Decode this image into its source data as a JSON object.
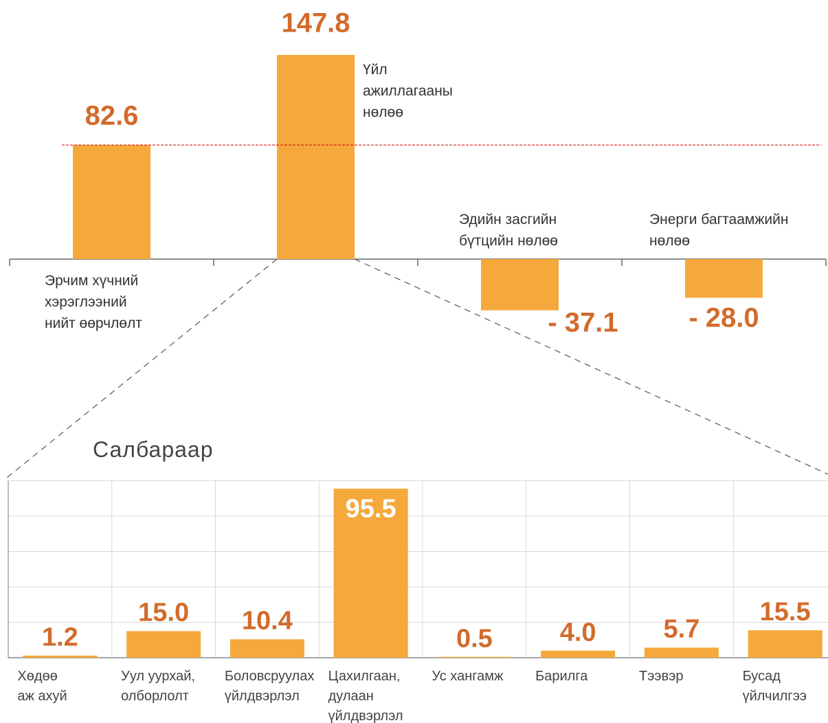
{
  "chart_data": [
    {
      "type": "bar",
      "categories": [
        "Эрчим хүчний\nхэрэглээний\nнийт өөрчлөлт",
        "Үйл\nажиллагааны\nнөлөө",
        "Эдийн засгийн\nбүтцийн нөлөө",
        "Энерги багтаамжийн\nнөлөө"
      ],
      "values": [
        82.6,
        147.8,
        -37.1,
        -28.0
      ],
      "value_labels": [
        "82.6",
        "147.8",
        "- 37.1",
        "- 28.0"
      ],
      "color": "#f5a93c",
      "label_color": "#d36b2b",
      "ylim": [
        -50,
        150
      ],
      "reference_line": {
        "value": 82.6,
        "color": "#cc0000"
      }
    },
    {
      "type": "bar",
      "title": "Салбараар",
      "categories": [
        "Хөдөө\nаж ахуй",
        "Уул уурхай,\nолборлолт",
        "Боловсруулах\nүйлдвэрлэл",
        "Цахилгаан,\nдулаан\nүйлдвэрлэл",
        "Ус хангамж",
        "Барилга",
        "Тээвэр",
        "Бусад\nүйлчилгээ"
      ],
      "values": [
        1.2,
        15.0,
        10.4,
        95.5,
        0.5,
        4.0,
        5.7,
        15.5
      ],
      "value_labels": [
        "1.2",
        "15.0",
        "10.4",
        "95.5",
        "0.5",
        "4.0",
        "5.7",
        "15.5"
      ],
      "color": "#f5a93c",
      "label_color": "#d36b2b",
      "ylim": [
        0,
        100
      ],
      "yticks": [
        0,
        20,
        40,
        60,
        80,
        100
      ],
      "grid": true
    }
  ]
}
